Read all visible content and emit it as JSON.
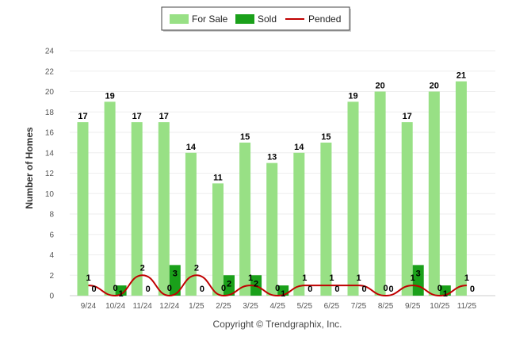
{
  "chart_data": {
    "type": "bar",
    "ylabel": "Number of Homes",
    "xlabel": "",
    "ylim": [
      0,
      24
    ],
    "yticks": [
      0,
      2,
      4,
      6,
      8,
      10,
      12,
      14,
      16,
      18,
      20,
      22,
      24
    ],
    "grid": true,
    "legend_position": "top-center",
    "categories": [
      "9/24",
      "10/24",
      "11/24",
      "12/24",
      "1/25",
      "2/25",
      "3/25",
      "4/25",
      "5/25",
      "6/25",
      "7/25",
      "8/25",
      "9/25",
      "10/25",
      "11/25"
    ],
    "series": [
      {
        "name": "For Sale",
        "kind": "bar",
        "color": "#98e085",
        "values": [
          17,
          19,
          17,
          17,
          14,
          11,
          15,
          13,
          14,
          15,
          19,
          20,
          17,
          20,
          21
        ]
      },
      {
        "name": "Sold",
        "kind": "bar",
        "color": "#1aa01a",
        "values": [
          0,
          1,
          0,
          3,
          0,
          2,
          2,
          1,
          0,
          0,
          0,
          0,
          3,
          1,
          0
        ]
      },
      {
        "name": "Pended",
        "kind": "line",
        "color": "#c00000",
        "values": [
          1,
          0,
          2,
          0,
          2,
          0,
          1,
          0,
          1,
          1,
          1,
          0,
          1,
          0,
          1
        ]
      }
    ]
  },
  "credit": "Copyright © Trendgraphix, Inc."
}
